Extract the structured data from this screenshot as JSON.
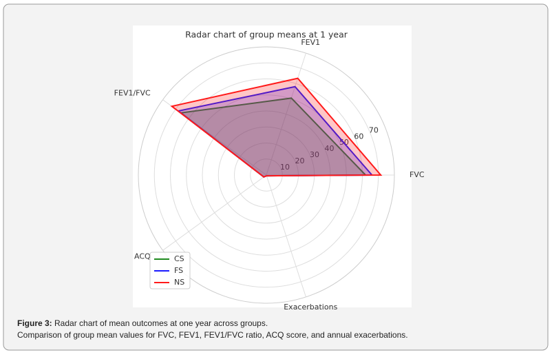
{
  "chart_data": {
    "type": "radar",
    "title": "Radar chart of group means at 1 year",
    "categories": [
      "FVC",
      "FEV1",
      "FEV1/FVC",
      "ACQ",
      "Exacerbations"
    ],
    "series": [
      {
        "name": "CS",
        "color": "#1f8a1f",
        "values": [
          62,
          50.5,
          66,
          2,
          0.5
        ]
      },
      {
        "name": "FS",
        "color": "#1a1aff",
        "values": [
          66,
          58,
          68,
          2,
          0.5
        ]
      },
      {
        "name": "NS",
        "color": "#ff1a1a",
        "values": [
          71.5,
          63.5,
          73,
          2,
          0.5
        ]
      }
    ],
    "ylim": [
      0,
      80
    ],
    "yticks": [
      10,
      20,
      30,
      40,
      50,
      60,
      70
    ],
    "grid": true,
    "legend": "lower left"
  },
  "caption": {
    "label": "Figure 3:",
    "text": "Radar chart of mean outcomes at one year across groups.",
    "detail": "Comparison of group mean values for FVC, FEV1, FEV1/FVC ratio, ACQ score, and annual exacerbations."
  }
}
